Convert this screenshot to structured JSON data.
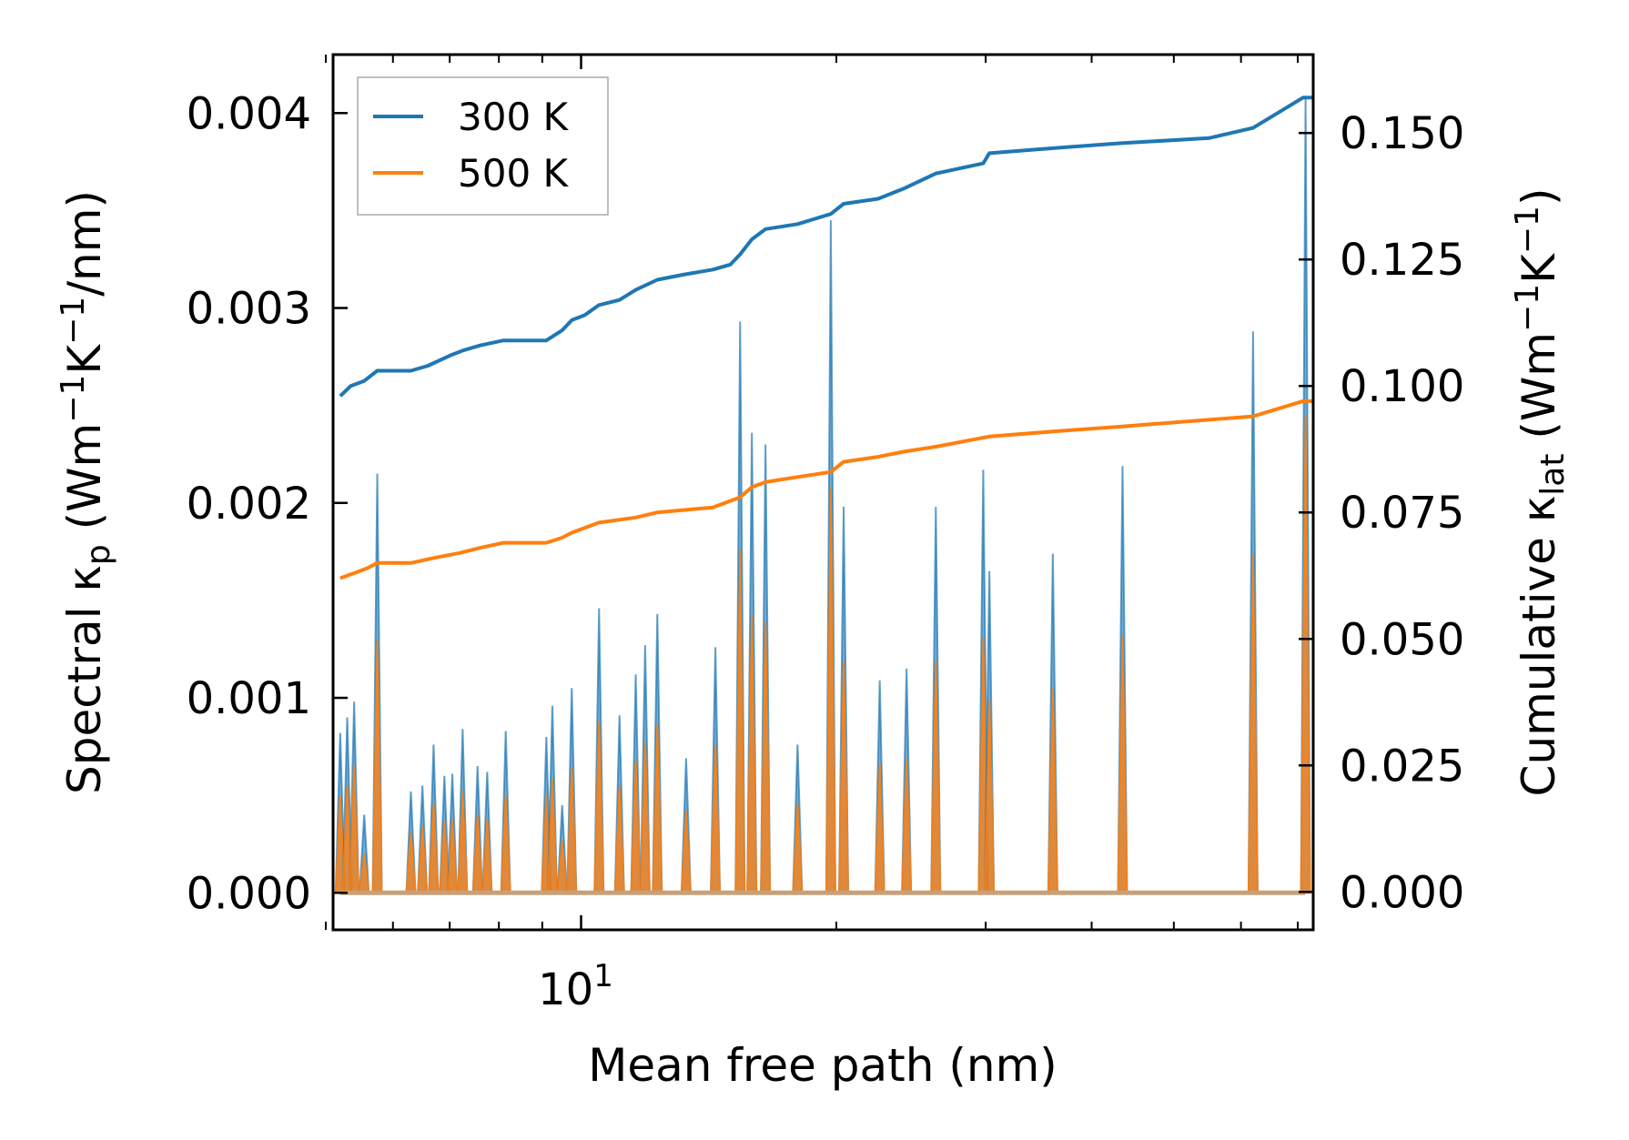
{
  "chart_data": {
    "type": "line+area",
    "xscale": "log",
    "xlim": [
      5.1,
      73
    ],
    "xlabel": "Mean free path (nm)",
    "xtick_major": {
      "value": 10,
      "base": "10",
      "exponent": "1"
    },
    "xtick_minor": [
      5,
      6,
      7,
      8,
      9,
      20,
      30,
      40,
      50,
      60,
      70
    ],
    "y_left": {
      "label_main": "Spectral κ",
      "label_sub": "p",
      "label_unit_a": " (Wm",
      "label_sup1": "−1",
      "label_unit_b": "K",
      "label_sup2": "−1",
      "label_unit_c": "/nm)",
      "ylim": [
        -0.00019,
        0.0043
      ],
      "ticks": [
        0.0,
        0.001,
        0.002,
        0.003,
        0.004
      ],
      "tick_labels": [
        "0.000",
        "0.001",
        "0.002",
        "0.003",
        "0.004"
      ]
    },
    "y_right": {
      "label_main": "Cumulative κ",
      "label_sub": "lat",
      "label_unit_a": " (Wm",
      "label_sup1": "−1",
      "label_unit_b": "K",
      "label_sup2": "−1",
      "label_unit_c": ")",
      "ylim": [
        -0.0075,
        0.1655
      ],
      "ticks": [
        0.0,
        0.025,
        0.05,
        0.075,
        0.1,
        0.125,
        0.15
      ],
      "tick_labels": [
        "0.000",
        "0.025",
        "0.050",
        "0.075",
        "0.100",
        "0.125",
        "0.150"
      ]
    },
    "legend": {
      "position": "top-left",
      "entries": [
        {
          "label": "300 K",
          "color": "#1f77b4"
        },
        {
          "label": "500 K",
          "color": "#ff7f0e"
        }
      ]
    },
    "spectral_peaks": [
      {
        "x": 5.2,
        "v300": 0.00082,
        "v500": 0.0005
      },
      {
        "x": 5.3,
        "v300": 0.0009,
        "v500": 0.00055
      },
      {
        "x": 5.4,
        "v300": 0.00098,
        "v500": 0.00065
      },
      {
        "x": 5.55,
        "v300": 0.0004,
        "v500": 0.0002
      },
      {
        "x": 5.75,
        "v300": 0.00215,
        "v500": 0.0013
      },
      {
        "x": 6.3,
        "v300": 0.00052,
        "v500": 0.00031
      },
      {
        "x": 6.5,
        "v300": 0.00055,
        "v500": 0.00034
      },
      {
        "x": 6.7,
        "v300": 0.00076,
        "v500": 0.00046
      },
      {
        "x": 6.9,
        "v300": 0.0006,
        "v500": 0.00037
      },
      {
        "x": 7.05,
        "v300": 0.00061,
        "v500": 0.00038
      },
      {
        "x": 7.25,
        "v300": 0.00084,
        "v500": 0.00052
      },
      {
        "x": 7.55,
        "v300": 0.00065,
        "v500": 0.0004
      },
      {
        "x": 7.75,
        "v300": 0.00062,
        "v500": 0.00038
      },
      {
        "x": 8.15,
        "v300": 0.00083,
        "v500": 0.0005
      },
      {
        "x": 9.1,
        "v300": 0.0008,
        "v500": 0.0005
      },
      {
        "x": 9.25,
        "v300": 0.00096,
        "v500": 0.00058
      },
      {
        "x": 9.5,
        "v300": 0.00045,
        "v500": 0.00027
      },
      {
        "x": 9.75,
        "v300": 0.00105,
        "v500": 0.00064
      },
      {
        "x": 10.5,
        "v300": 0.00146,
        "v500": 0.00088
      },
      {
        "x": 11.1,
        "v300": 0.00091,
        "v500": 0.00055
      },
      {
        "x": 11.6,
        "v300": 0.00112,
        "v500": 0.00068
      },
      {
        "x": 11.9,
        "v300": 0.00127,
        "v500": 0.00077
      },
      {
        "x": 12.3,
        "v300": 0.00143,
        "v500": 0.00087
      },
      {
        "x": 13.3,
        "v300": 0.00069,
        "v500": 0.00042
      },
      {
        "x": 14.4,
        "v300": 0.00126,
        "v500": 0.00076
      },
      {
        "x": 15.4,
        "v300": 0.00293,
        "v500": 0.00176
      },
      {
        "x": 15.9,
        "v300": 0.00236,
        "v500": 0.00142
      },
      {
        "x": 16.5,
        "v300": 0.0023,
        "v500": 0.00139
      },
      {
        "x": 18.0,
        "v300": 0.00076,
        "v500": 0.00046
      },
      {
        "x": 19.7,
        "v300": 0.00345,
        "v500": 0.00208
      },
      {
        "x": 20.4,
        "v300": 0.00198,
        "v500": 0.00119
      },
      {
        "x": 22.5,
        "v300": 0.00109,
        "v500": 0.00066
      },
      {
        "x": 24.2,
        "v300": 0.00115,
        "v500": 0.00069
      },
      {
        "x": 26.2,
        "v300": 0.00198,
        "v500": 0.00119
      },
      {
        "x": 29.8,
        "v300": 0.00217,
        "v500": 0.00131
      },
      {
        "x": 30.3,
        "v300": 0.00165,
        "v500": 0.00099
      },
      {
        "x": 36.0,
        "v300": 0.00174,
        "v500": 0.00105
      },
      {
        "x": 43.5,
        "v300": 0.00219,
        "v500": 0.00132
      },
      {
        "x": 62.0,
        "v300": 0.00288,
        "v500": 0.00174
      },
      {
        "x": 71.5,
        "v300": 0.00408,
        "v500": 0.00245
      }
    ],
    "series": [
      {
        "name": "300 K",
        "color": "#1f77b4",
        "points": [
          [
            5.2,
            0.098
          ],
          [
            5.35,
            0.1
          ],
          [
            5.55,
            0.101
          ],
          [
            5.75,
            0.103
          ],
          [
            6.3,
            0.103
          ],
          [
            6.6,
            0.104
          ],
          [
            7.0,
            0.106
          ],
          [
            7.25,
            0.107
          ],
          [
            7.6,
            0.108
          ],
          [
            8.1,
            0.109
          ],
          [
            9.1,
            0.109
          ],
          [
            9.5,
            0.111
          ],
          [
            9.75,
            0.113
          ],
          [
            10.1,
            0.114
          ],
          [
            10.5,
            0.116
          ],
          [
            11.1,
            0.117
          ],
          [
            11.6,
            0.119
          ],
          [
            12.3,
            0.121
          ],
          [
            13.2,
            0.122
          ],
          [
            14.3,
            0.123
          ],
          [
            15.0,
            0.124
          ],
          [
            15.4,
            0.126
          ],
          [
            15.9,
            0.129
          ],
          [
            16.5,
            0.131
          ],
          [
            18.0,
            0.132
          ],
          [
            19.7,
            0.134
          ],
          [
            20.4,
            0.136
          ],
          [
            22.4,
            0.137
          ],
          [
            24.0,
            0.139
          ],
          [
            26.2,
            0.142
          ],
          [
            29.8,
            0.144
          ],
          [
            30.3,
            0.146
          ],
          [
            36.0,
            0.147
          ],
          [
            43.5,
            0.148
          ],
          [
            55.0,
            0.149
          ],
          [
            62.0,
            0.151
          ],
          [
            71.0,
            0.157
          ],
          [
            73.0,
            0.157
          ]
        ]
      },
      {
        "name": "500 K",
        "color": "#ff7f0e",
        "points": [
          [
            5.2,
            0.062
          ],
          [
            5.4,
            0.063
          ],
          [
            5.6,
            0.064
          ],
          [
            5.75,
            0.065
          ],
          [
            6.3,
            0.065
          ],
          [
            6.7,
            0.066
          ],
          [
            7.2,
            0.067
          ],
          [
            7.6,
            0.068
          ],
          [
            8.1,
            0.069
          ],
          [
            9.1,
            0.069
          ],
          [
            9.5,
            0.07
          ],
          [
            9.75,
            0.071
          ],
          [
            10.5,
            0.073
          ],
          [
            11.6,
            0.074
          ],
          [
            12.3,
            0.075
          ],
          [
            14.3,
            0.076
          ],
          [
            15.4,
            0.078
          ],
          [
            15.9,
            0.08
          ],
          [
            16.5,
            0.081
          ],
          [
            18.0,
            0.082
          ],
          [
            19.7,
            0.083
          ],
          [
            20.4,
            0.085
          ],
          [
            22.4,
            0.086
          ],
          [
            24.0,
            0.087
          ],
          [
            26.2,
            0.088
          ],
          [
            30.3,
            0.09
          ],
          [
            36.0,
            0.091
          ],
          [
            43.5,
            0.092
          ],
          [
            62.0,
            0.094
          ],
          [
            71.0,
            0.097
          ],
          [
            73.0,
            0.097
          ]
        ]
      }
    ]
  }
}
